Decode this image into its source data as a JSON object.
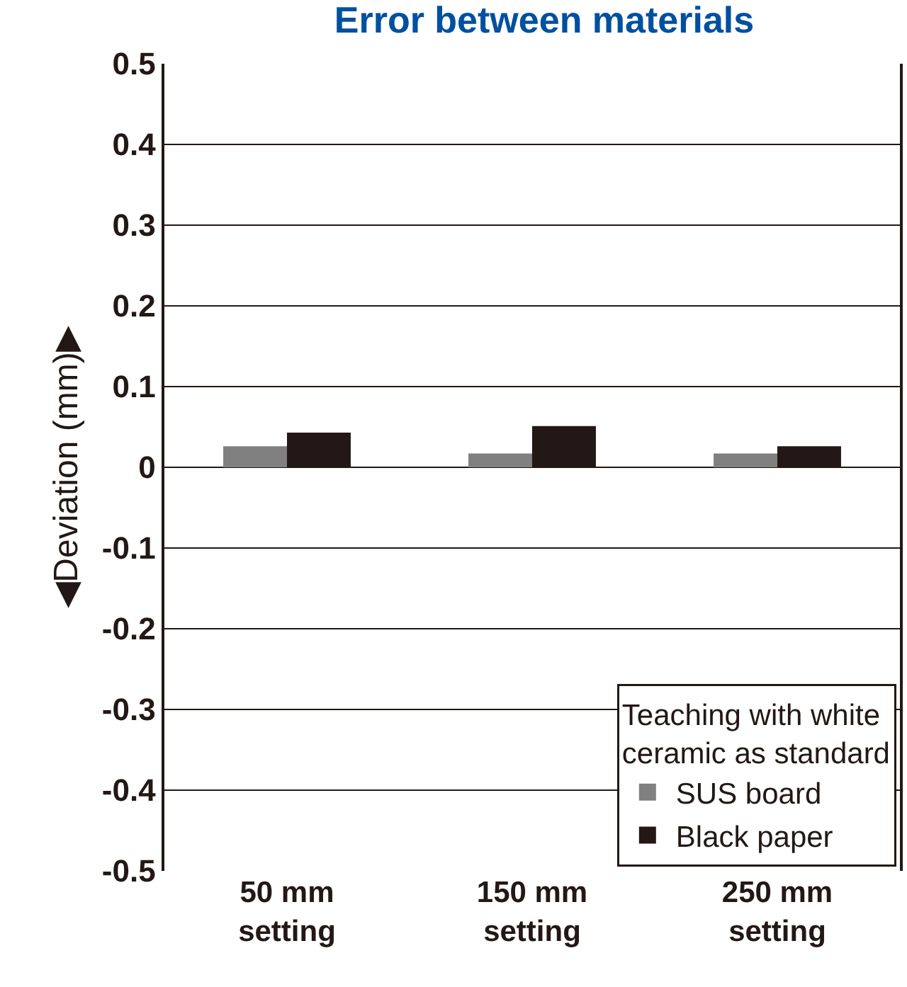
{
  "chart_data": {
    "type": "bar",
    "title": "Error between materials",
    "ylabel": "◀Deviation (mm)▶",
    "categories": [
      "50 mm\nsetting",
      "150 mm\nsetting",
      "250 mm\nsetting"
    ],
    "series": [
      {
        "name": "SUS board",
        "color": "#808080",
        "values": [
          0.026,
          0.017,
          0.017
        ]
      },
      {
        "name": "Black paper",
        "color": "#231815",
        "values": [
          0.043,
          0.051,
          0.026
        ]
      }
    ],
    "legend_title": "Teaching with white\nceramic as standard",
    "legend": "bottom right",
    "ylim": [
      -0.5,
      0.5
    ],
    "yticks": [
      -0.5,
      -0.4,
      -0.3,
      -0.2,
      -0.1,
      0,
      0.1,
      0.2,
      0.3,
      0.4,
      0.5
    ],
    "grid": "y"
  }
}
